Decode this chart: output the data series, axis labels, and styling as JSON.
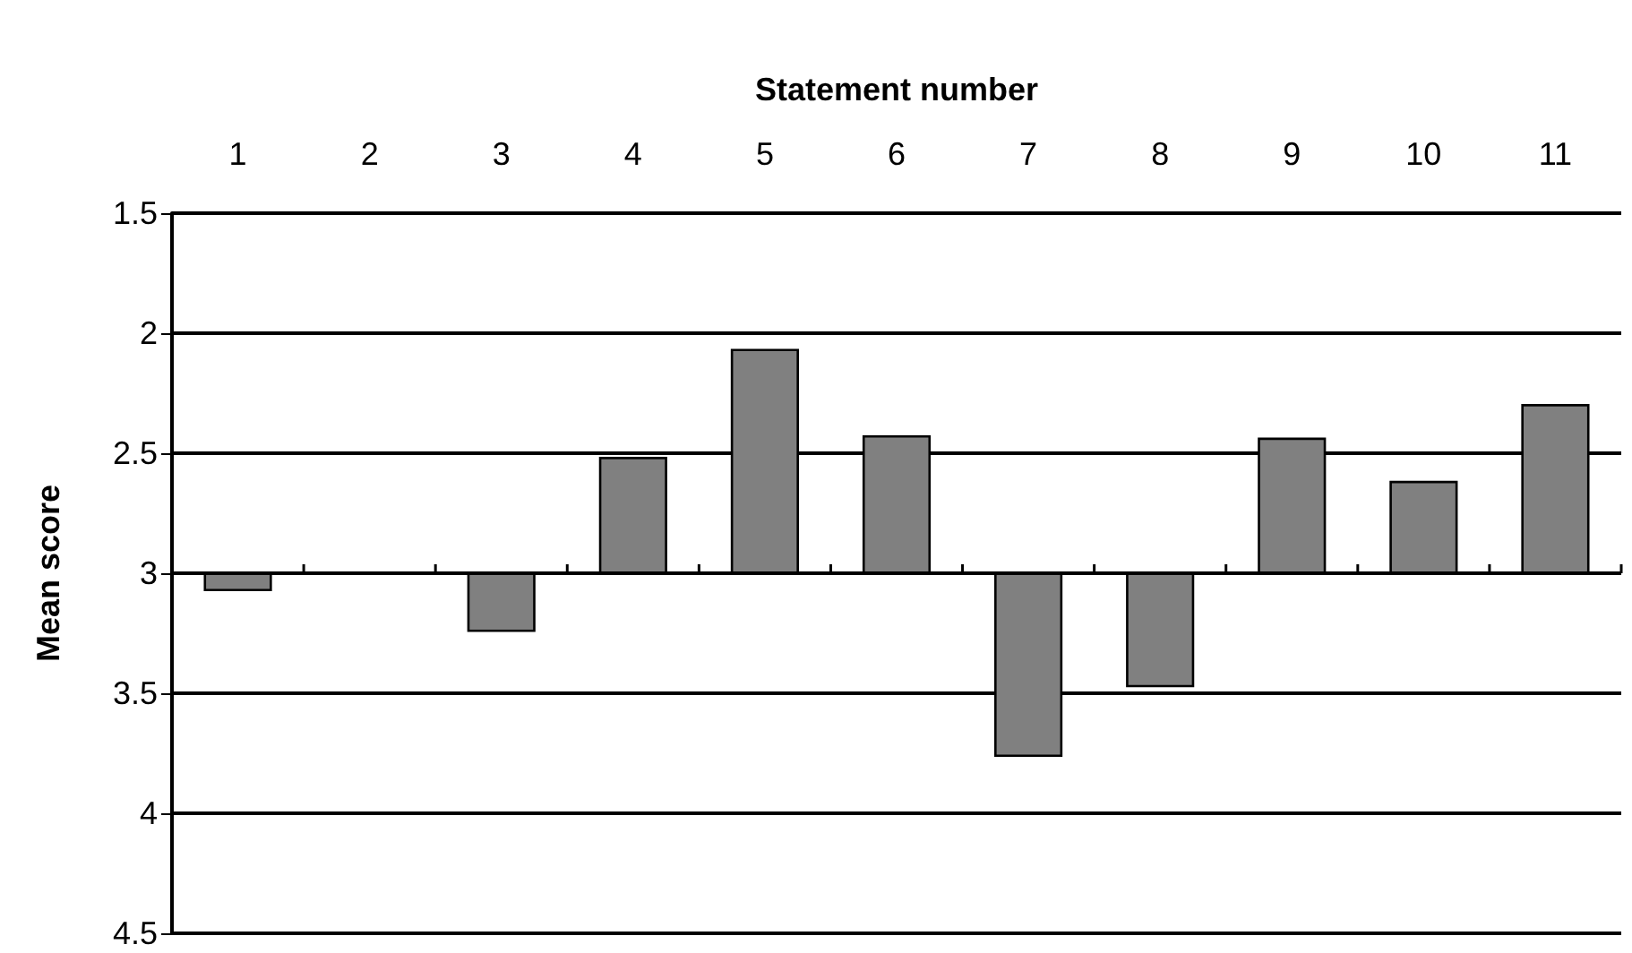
{
  "chart_data": {
    "type": "bar",
    "xlabel": "Statement number",
    "ylabel": "Mean score",
    "categories": [
      "1",
      "2",
      "3",
      "4",
      "5",
      "6",
      "7",
      "8",
      "9",
      "10",
      "11"
    ],
    "base": [
      3,
      null,
      3,
      3,
      3,
      3,
      3,
      3,
      3,
      3,
      3
    ],
    "values": [
      0.07,
      null,
      0.24,
      -0.48,
      -0.93,
      -0.57,
      0.76,
      0.47,
      -0.56,
      -0.38,
      -0.7
    ],
    "color": "#808080",
    "ylim": [
      4.5,
      1.5
    ],
    "yticks": [
      1.5,
      2,
      2.5,
      3,
      3.5,
      4,
      4.5
    ],
    "grid": "y",
    "legend": false
  }
}
